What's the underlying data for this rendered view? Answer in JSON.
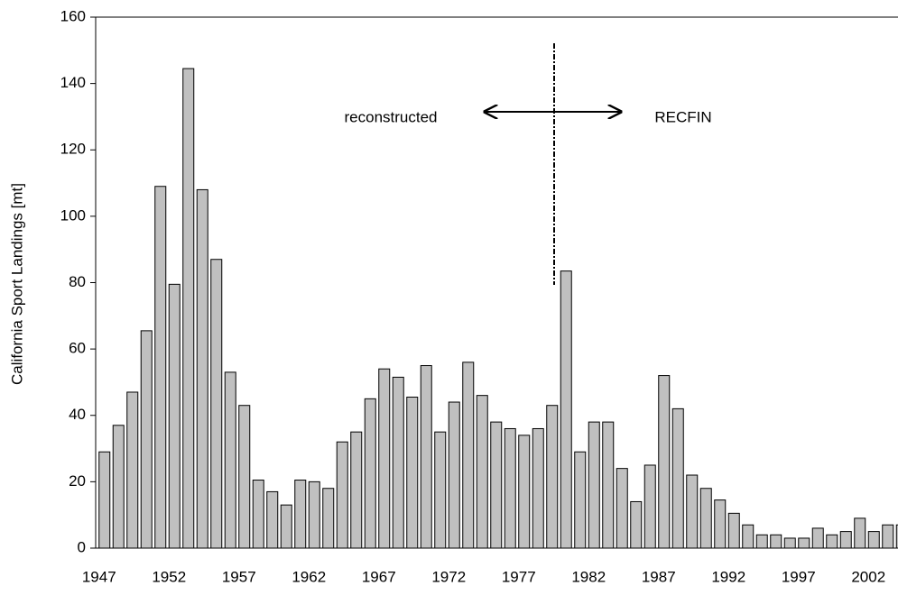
{
  "chart_data": {
    "type": "bar",
    "y_label": "California Sport Landings [mt]",
    "annotations": [
      "reconstructed",
      "RECFIN"
    ],
    "categories": [
      "1947",
      null,
      null,
      null,
      null,
      "1952",
      null,
      null,
      null,
      null,
      "1957",
      null,
      null,
      null,
      null,
      "1962",
      null,
      null,
      null,
      null,
      "1967",
      null,
      null,
      null,
      null,
      "1972",
      null,
      null,
      null,
      null,
      "1977",
      null,
      null,
      null,
      null,
      "1982",
      null,
      null,
      null,
      null,
      "1987",
      null,
      null,
      null,
      null,
      "1992",
      null,
      null,
      null,
      null,
      "1997",
      null,
      null,
      null,
      null,
      "2002",
      null,
      null
    ],
    "values": [
      29,
      37,
      47,
      65.5,
      109,
      79.5,
      144.5,
      108,
      87,
      53,
      43,
      20.5,
      17,
      13,
      20.5,
      20,
      18,
      32,
      35,
      45,
      54,
      51.5,
      45.5,
      55,
      35,
      44,
      56,
      46,
      38,
      36,
      34,
      36,
      43,
      83.5,
      29,
      38,
      38,
      24,
      14,
      25,
      52,
      42,
      22,
      18,
      14.5,
      10.5,
      7,
      4,
      4,
      3,
      3,
      6,
      4,
      5,
      9,
      5,
      7,
      7
    ],
    "color": "#c0c0c0",
    "ylim": [
      0,
      160
    ],
    "yticks": [
      0,
      20,
      40,
      60,
      80,
      100,
      120,
      140,
      160
    ]
  }
}
